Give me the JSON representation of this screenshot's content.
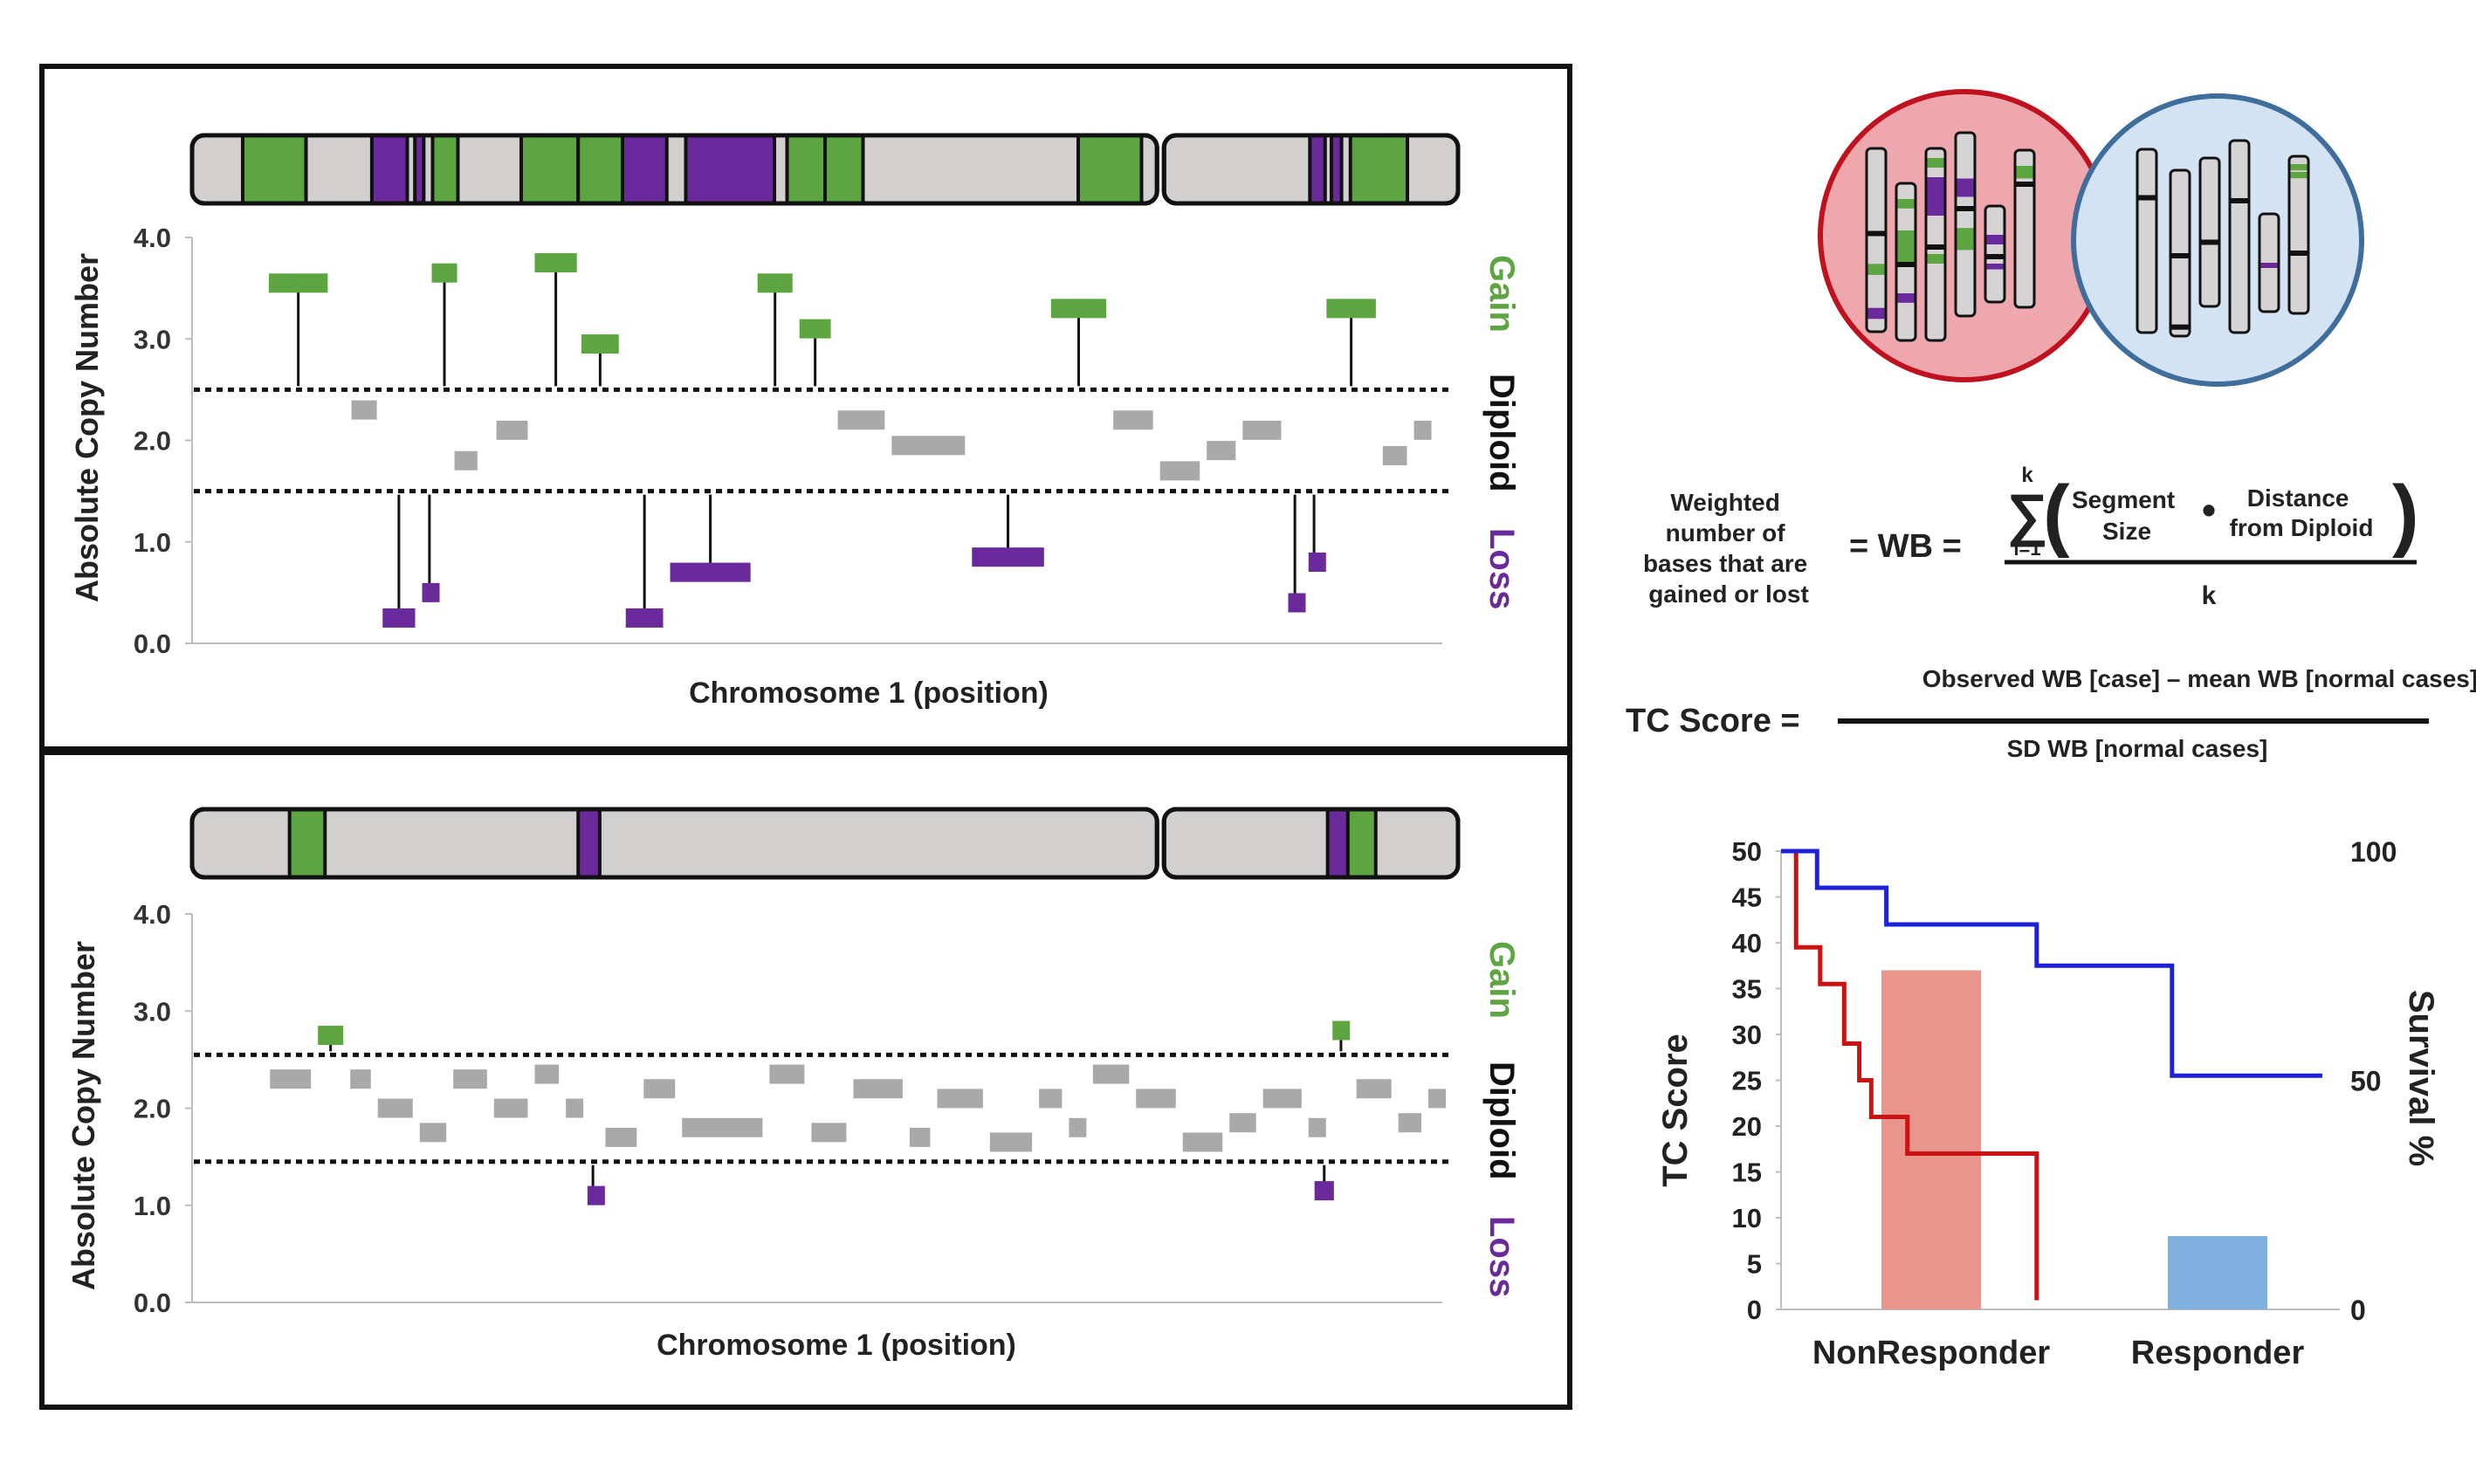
{
  "colors": {
    "gain": "#5ca541",
    "loss": "#6b2a9b",
    "neutral": "#a9a9a9",
    "chrom_fill": "#d2cfcf",
    "nonresponder_circle": "#eda7ad",
    "nonresponder_border": "#c0121e",
    "responder_circle": "#d4e3f3",
    "responder_border": "#3f6e9c",
    "bar_nonresponder": "#e9958e",
    "bar_responder": "#7fb0de",
    "curve_nonresponder": "#cc1111",
    "curve_responder": "#1d21d9"
  },
  "panels": [
    {
      "id": "top",
      "y_axis_label": "Absolute Copy Number",
      "x_axis_label": "Chromosome 1 (position)",
      "y_ticks": [
        "4.0",
        "3.0",
        "2.0",
        "1.0",
        "0.0"
      ],
      "ylim": [
        0,
        4
      ],
      "thresholds": [
        2.5,
        1.5
      ],
      "side_labels": {
        "gain": "Gain",
        "diploid": "Diploid",
        "loss": "Loss"
      },
      "ideogram_bands": [
        {
          "start": 0.04,
          "end": 0.09,
          "type": "gain"
        },
        {
          "start": 0.142,
          "end": 0.17,
          "type": "loss"
        },
        {
          "start": 0.176,
          "end": 0.183,
          "type": "loss"
        },
        {
          "start": 0.19,
          "end": 0.21,
          "type": "gain"
        },
        {
          "start": 0.26,
          "end": 0.305,
          "type": "gain"
        },
        {
          "start": 0.305,
          "end": 0.34,
          "type": "gain"
        },
        {
          "start": 0.34,
          "end": 0.375,
          "type": "loss"
        },
        {
          "start": 0.39,
          "end": 0.46,
          "type": "loss"
        },
        {
          "start": 0.47,
          "end": 0.5,
          "type": "gain"
        },
        {
          "start": 0.5,
          "end": 0.53,
          "type": "gain"
        },
        {
          "start": 0.7,
          "end": 0.75,
          "type": "gain"
        },
        {
          "start": 0.883,
          "end": 0.895,
          "type": "loss"
        },
        {
          "start": 0.9,
          "end": 0.908,
          "type": "loss"
        },
        {
          "start": 0.915,
          "end": 0.96,
          "type": "gain"
        }
      ],
      "segments": [
        {
          "start": 0.032,
          "end": 0.087,
          "cn": 3.55,
          "type": "gain"
        },
        {
          "start": 0.101,
          "end": 0.128,
          "cn": 2.3,
          "type": "neutral"
        },
        {
          "start": 0.127,
          "end": 0.16,
          "cn": 0.25,
          "type": "loss"
        },
        {
          "start": 0.16,
          "end": 0.178,
          "cn": 0.5,
          "type": "loss"
        },
        {
          "start": 0.168,
          "end": 0.195,
          "cn": 3.65,
          "type": "gain"
        },
        {
          "start": 0.187,
          "end": 0.212,
          "cn": 1.8,
          "type": "neutral"
        },
        {
          "start": 0.222,
          "end": 0.254,
          "cn": 2.1,
          "type": "neutral"
        },
        {
          "start": 0.254,
          "end": 0.295,
          "cn": 3.75,
          "type": "gain"
        },
        {
          "start": 0.293,
          "end": 0.33,
          "cn": 2.95,
          "type": "gain"
        },
        {
          "start": 0.33,
          "end": 0.367,
          "cn": 0.25,
          "type": "loss"
        },
        {
          "start": 0.367,
          "end": 0.44,
          "cn": 0.7,
          "type": "loss"
        },
        {
          "start": 0.44,
          "end": 0.475,
          "cn": 3.55,
          "type": "gain"
        },
        {
          "start": 0.475,
          "end": 0.507,
          "cn": 3.1,
          "type": "gain"
        },
        {
          "start": 0.507,
          "end": 0.552,
          "cn": 2.2,
          "type": "neutral"
        },
        {
          "start": 0.552,
          "end": 0.619,
          "cn": 1.95,
          "type": "neutral"
        },
        {
          "start": 0.619,
          "end": 0.685,
          "cn": 0.85,
          "type": "loss"
        },
        {
          "start": 0.685,
          "end": 0.737,
          "cn": 3.3,
          "type": "gain"
        },
        {
          "start": 0.737,
          "end": 0.776,
          "cn": 2.2,
          "type": "neutral"
        },
        {
          "start": 0.776,
          "end": 0.815,
          "cn": 1.7,
          "type": "neutral"
        },
        {
          "start": 0.815,
          "end": 0.845,
          "cn": 1.9,
          "type": "neutral"
        },
        {
          "start": 0.845,
          "end": 0.883,
          "cn": 2.1,
          "type": "neutral"
        },
        {
          "start": 0.883,
          "end": 0.9,
          "cn": 0.4,
          "type": "loss"
        },
        {
          "start": 0.9,
          "end": 0.915,
          "cn": 0.8,
          "type": "loss"
        },
        {
          "start": 0.915,
          "end": 0.962,
          "cn": 3.3,
          "type": "gain"
        },
        {
          "start": 0.962,
          "end": 0.988,
          "cn": 1.85,
          "type": "neutral"
        },
        {
          "start": 0.988,
          "end": 1.0,
          "cn": 2.1,
          "type": "neutral"
        }
      ]
    },
    {
      "id": "bottom",
      "y_axis_label": "Absolute Copy Number",
      "x_axis_label": "Chromosome 1 (position)",
      "y_ticks": [
        "4.0",
        "3.0",
        "2.0",
        "1.0",
        "0.0"
      ],
      "ylim": [
        0,
        4
      ],
      "thresholds": [
        2.55,
        1.45
      ],
      "side_labels": {
        "gain": "Gain",
        "diploid": "Diploid",
        "loss": "Loss"
      },
      "ideogram_bands": [
        {
          "start": 0.077,
          "end": 0.105,
          "type": "gain"
        },
        {
          "start": 0.305,
          "end": 0.322,
          "type": "loss"
        },
        {
          "start": 0.897,
          "end": 0.913,
          "type": "loss"
        },
        {
          "start": 0.913,
          "end": 0.935,
          "type": "gain"
        }
      ],
      "segments": [
        {
          "start": 0.033,
          "end": 0.073,
          "cn": 2.3,
          "type": "neutral"
        },
        {
          "start": 0.073,
          "end": 0.1,
          "cn": 2.75,
          "type": "gain"
        },
        {
          "start": 0.1,
          "end": 0.123,
          "cn": 2.3,
          "type": "neutral"
        },
        {
          "start": 0.123,
          "end": 0.158,
          "cn": 2.0,
          "type": "neutral"
        },
        {
          "start": 0.158,
          "end": 0.186,
          "cn": 1.75,
          "type": "neutral"
        },
        {
          "start": 0.186,
          "end": 0.22,
          "cn": 2.3,
          "type": "neutral"
        },
        {
          "start": 0.22,
          "end": 0.254,
          "cn": 2.0,
          "type": "neutral"
        },
        {
          "start": 0.254,
          "end": 0.28,
          "cn": 2.35,
          "type": "neutral"
        },
        {
          "start": 0.28,
          "end": 0.298,
          "cn": 2.0,
          "type": "neutral"
        },
        {
          "start": 0.298,
          "end": 0.313,
          "cn": 1.1,
          "type": "loss"
        },
        {
          "start": 0.313,
          "end": 0.345,
          "cn": 1.7,
          "type": "neutral"
        },
        {
          "start": 0.345,
          "end": 0.377,
          "cn": 2.2,
          "type": "neutral"
        },
        {
          "start": 0.377,
          "end": 0.45,
          "cn": 1.8,
          "type": "neutral"
        },
        {
          "start": 0.45,
          "end": 0.485,
          "cn": 2.35,
          "type": "neutral"
        },
        {
          "start": 0.485,
          "end": 0.52,
          "cn": 1.75,
          "type": "neutral"
        },
        {
          "start": 0.52,
          "end": 0.567,
          "cn": 2.2,
          "type": "neutral"
        },
        {
          "start": 0.567,
          "end": 0.59,
          "cn": 1.7,
          "type": "neutral"
        },
        {
          "start": 0.59,
          "end": 0.634,
          "cn": 2.1,
          "type": "neutral"
        },
        {
          "start": 0.634,
          "end": 0.675,
          "cn": 1.65,
          "type": "neutral"
        },
        {
          "start": 0.675,
          "end": 0.7,
          "cn": 2.1,
          "type": "neutral"
        },
        {
          "start": 0.7,
          "end": 0.72,
          "cn": 1.8,
          "type": "neutral"
        },
        {
          "start": 0.72,
          "end": 0.756,
          "cn": 2.35,
          "type": "neutral"
        },
        {
          "start": 0.756,
          "end": 0.795,
          "cn": 2.1,
          "type": "neutral"
        },
        {
          "start": 0.795,
          "end": 0.834,
          "cn": 1.65,
          "type": "neutral"
        },
        {
          "start": 0.834,
          "end": 0.862,
          "cn": 1.85,
          "type": "neutral"
        },
        {
          "start": 0.862,
          "end": 0.9,
          "cn": 2.1,
          "type": "neutral"
        },
        {
          "start": 0.9,
          "end": 0.913,
          "cn": 1.8,
          "type": "neutral"
        },
        {
          "start": 0.905,
          "end": 0.927,
          "cn": 1.15,
          "type": "loss"
        },
        {
          "start": 0.92,
          "end": 0.94,
          "cn": 2.8,
          "type": "gain"
        },
        {
          "start": 0.94,
          "end": 0.975,
          "cn": 2.2,
          "type": "neutral"
        },
        {
          "start": 0.975,
          "end": 1.0,
          "cn": 1.85,
          "type": "neutral"
        },
        {
          "start": 1.0,
          "end": 1.012,
          "cn": 2.1,
          "type": "neutral"
        }
      ]
    }
  ],
  "formula": {
    "left_text_lines": [
      "Weighted",
      "number of",
      "bases that are",
      "gained or lost"
    ],
    "equals_wb": "= WB =",
    "sum_upper": "k",
    "sum_lower": "i=1",
    "sum_symbol": "∑",
    "term1_lines": [
      "Segment",
      "Size"
    ],
    "dot": "•",
    "term2_lines": [
      "Distance",
      "from Diploid"
    ],
    "denominator": "k",
    "tc_label": "TC Score =",
    "tc_numerator": "Observed WB [case] – mean WB [normal cases]",
    "tc_denominator": "SD WB [normal cases]"
  },
  "chart_data": {
    "type": "bar",
    "categories": [
      "NonResponder",
      "Responder"
    ],
    "values": [
      37,
      8
    ],
    "ylabel": "TC Score",
    "ylim": [
      0,
      50
    ],
    "y_ticks": [
      "50",
      "45",
      "40",
      "35",
      "30",
      "25",
      "20",
      "15",
      "10",
      "5",
      "0"
    ],
    "y2label": "Survival %",
    "y2lim": [
      0,
      100
    ],
    "y2_ticks": [
      "100",
      "50",
      "0"
    ],
    "survival_curves": [
      {
        "group": "NonResponder",
        "steps": [
          [
            0,
            100
          ],
          [
            0.05,
            100
          ],
          [
            0.05,
            79
          ],
          [
            0.13,
            79
          ],
          [
            0.13,
            71
          ],
          [
            0.21,
            71
          ],
          [
            0.21,
            58
          ],
          [
            0.26,
            58
          ],
          [
            0.26,
            50
          ],
          [
            0.3,
            50
          ],
          [
            0.3,
            42
          ],
          [
            0.42,
            42
          ],
          [
            0.42,
            34
          ],
          [
            0.85,
            34
          ],
          [
            0.85,
            2
          ]
        ]
      },
      {
        "group": "Responder",
        "steps": [
          [
            0,
            100
          ],
          [
            0.12,
            100
          ],
          [
            0.12,
            92
          ],
          [
            0.35,
            92
          ],
          [
            0.35,
            84
          ],
          [
            0.85,
            84
          ],
          [
            0.85,
            75
          ],
          [
            1.3,
            75
          ],
          [
            1.3,
            51
          ],
          [
            1.8,
            51
          ]
        ]
      }
    ]
  }
}
